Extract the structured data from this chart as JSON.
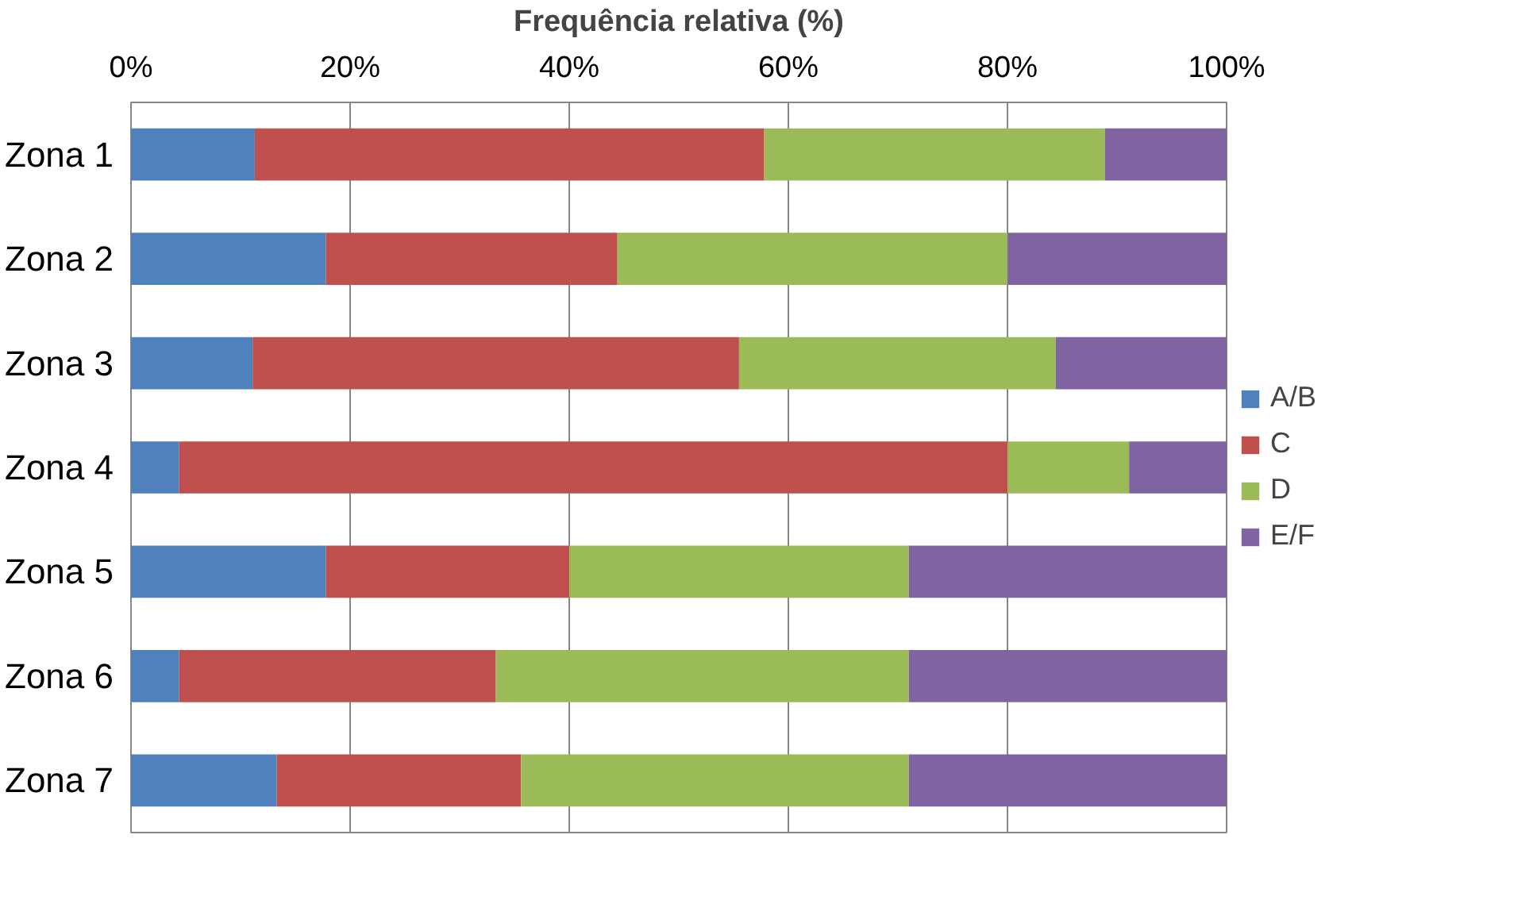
{
  "chart_data": {
    "type": "bar",
    "orientation": "horizontal",
    "stacked": true,
    "xlabel": "Frequência relativa (%)",
    "categories": [
      "Zona 1",
      "Zona 2",
      "Zona 3",
      "Zona 4",
      "Zona 5",
      "Zona 6",
      "Zona 7"
    ],
    "series": [
      {
        "name": "A/B",
        "color": "#4f81bd",
        "values": [
          11.3,
          17.8,
          11.1,
          4.4,
          17.8,
          4.4,
          13.3
        ]
      },
      {
        "name": "C",
        "color": "#c0504d",
        "values": [
          46.5,
          26.6,
          44.4,
          75.6,
          22.2,
          28.9,
          22.3
        ]
      },
      {
        "name": "D",
        "color": "#9bbb59",
        "values": [
          31.1,
          35.6,
          28.9,
          11.1,
          31.0,
          37.7,
          35.4
        ]
      },
      {
        "name": "E/F",
        "color": "#8064a2",
        "values": [
          11.1,
          20.0,
          15.6,
          8.9,
          29.0,
          29.0,
          29.0
        ]
      }
    ],
    "xlim": [
      0,
      100
    ],
    "xticks": [
      {
        "value": 0,
        "label": "0%"
      },
      {
        "value": 20,
        "label": "20%"
      },
      {
        "value": 40,
        "label": "40%"
      },
      {
        "value": 60,
        "label": "60%"
      },
      {
        "value": 80,
        "label": "80%"
      },
      {
        "value": 100,
        "label": "100%"
      }
    ],
    "grid": "x",
    "legend": "right"
  }
}
